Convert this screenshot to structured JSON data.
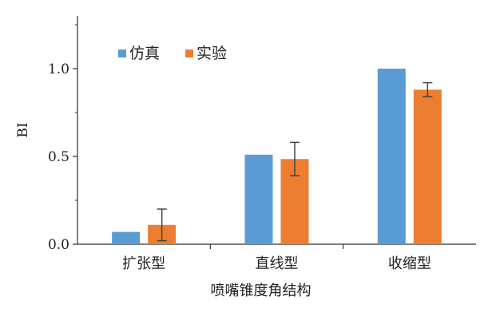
{
  "chart_data": {
    "type": "bar",
    "categories": [
      "扩张型",
      "直线型",
      "收缩型"
    ],
    "series": [
      {
        "name": "仿真",
        "color": "#5B9BD5",
        "values": [
          0.07,
          0.51,
          1.0
        ],
        "error": null
      },
      {
        "name": "实验",
        "color": "#ED7D31",
        "values": [
          0.11,
          0.485,
          0.88
        ],
        "error": [
          0.09,
          0.095,
          0.04
        ]
      }
    ],
    "xlabel": "喷嘴锥度角结构",
    "ylabel": "BI",
    "ylim": [
      0,
      1.3
    ],
    "yticks": [
      0.0,
      0.5,
      1.0
    ],
    "ytick_labels": [
      "0.0",
      "0.5",
      "1.0"
    ],
    "grid": false,
    "legend_position": "top-left"
  }
}
